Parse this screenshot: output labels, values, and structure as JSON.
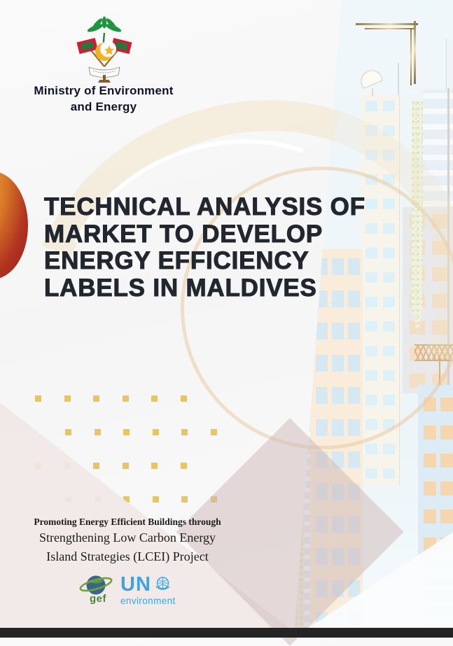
{
  "document": {
    "ministry": {
      "line1": "Ministry of Environment",
      "line2": "and Energy"
    },
    "title_lines": [
      "TECHNICAL ANALYSIS OF",
      "MARKET TO DEVELOP",
      "ENERGY EFFICIENCY",
      "LABELS IN MALDIVES"
    ],
    "project": {
      "line1": "Promoting Energy Efficient Buildings through",
      "line2": "Strengthening Low Carbon Energy",
      "line3": "Island Strategies (LCEI) Project"
    },
    "logos": {
      "gef_label": "gef",
      "un_name": "UN",
      "un_sub": "environment"
    },
    "colors": {
      "title_text": "#22262f",
      "gold_dot": "#e8c55e",
      "gold_frame": "#a5803d",
      "orange_circle_light": "#eead3f",
      "orange_circle_dark": "#971c1a",
      "un_blue": "#41a3dc",
      "gef_green": "#4e8637",
      "footer_bar": "#242424",
      "sky_panel": "#f0f7fa"
    }
  }
}
